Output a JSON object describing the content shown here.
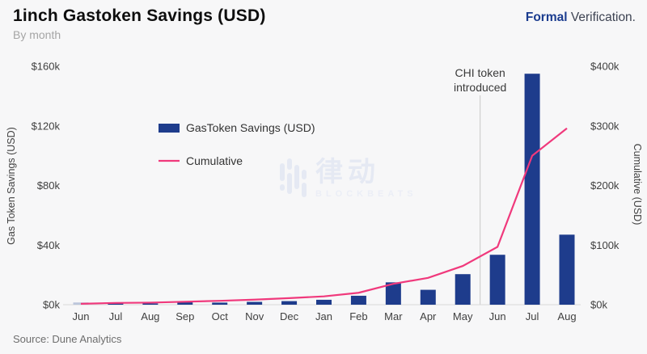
{
  "header": {
    "title": "1inch Gastoken Savings (USD)",
    "subtitle": "By month",
    "logo_bold": "Formal",
    "logo_rest": "Verification."
  },
  "footer": {
    "source": "Source: Dune Analytics"
  },
  "watermark": {
    "cjk": "律动",
    "latin": "BLOCKBEATS"
  },
  "colors": {
    "bar": "#1e3c8c",
    "bar_first": "#bcc6db",
    "line": "#f0397c",
    "annotation_line": "#c8c8c8",
    "axis": "#d8d8d8",
    "background": "#f7f7f8",
    "logo_blue": "#1b3c8f",
    "watermark_blue": "#e2e7f3"
  },
  "chart_data": {
    "type": "bar",
    "title": "1inch Gastoken Savings (USD)",
    "subtitle": "By month",
    "categories": [
      "Jun",
      "Jul",
      "Aug",
      "Sep",
      "Oct",
      "Nov",
      "Dec",
      "Jan",
      "Feb",
      "Mar",
      "Apr",
      "May",
      "Jun",
      "Jul",
      "Aug"
    ],
    "series": [
      {
        "name": "GasToken Savings (USD)",
        "type": "bar",
        "axis": "left",
        "values": [
          1.5,
          1.2,
          0.8,
          1.6,
          1.4,
          1.9,
          2.4,
          3.3,
          6,
          15,
          10,
          20.5,
          33.5,
          155,
          47
        ]
      },
      {
        "name": "Cumulative",
        "type": "line",
        "axis": "right",
        "values": [
          1.5,
          3,
          3.5,
          5,
          6.5,
          8.5,
          11,
          14,
          20,
          35,
          45,
          65,
          97,
          250,
          296
        ]
      }
    ],
    "left_axis": {
      "label": "Gas Token Savings (USD)",
      "unit": "$k",
      "max": 160,
      "tick_values": [
        0,
        40,
        80,
        120,
        160
      ],
      "ticks": [
        "$0k",
        "$40k",
        "$80k",
        "$120k",
        "$160k"
      ]
    },
    "right_axis": {
      "label": "Cumulative (USD)",
      "unit": "$k",
      "max": 400,
      "tick_values": [
        0,
        100,
        200,
        300,
        400
      ],
      "ticks": [
        "$0k",
        "$100k",
        "$200k",
        "$300k",
        "$400k"
      ]
    },
    "annotation": {
      "lines": [
        "CHI token",
        "introduced"
      ],
      "x_index": 11.5,
      "between": [
        "May",
        "Jun"
      ]
    },
    "legend": [
      "GasToken Savings (USD)",
      "Cumulative"
    ],
    "legend_position": "inside-top-left",
    "grid": false
  }
}
